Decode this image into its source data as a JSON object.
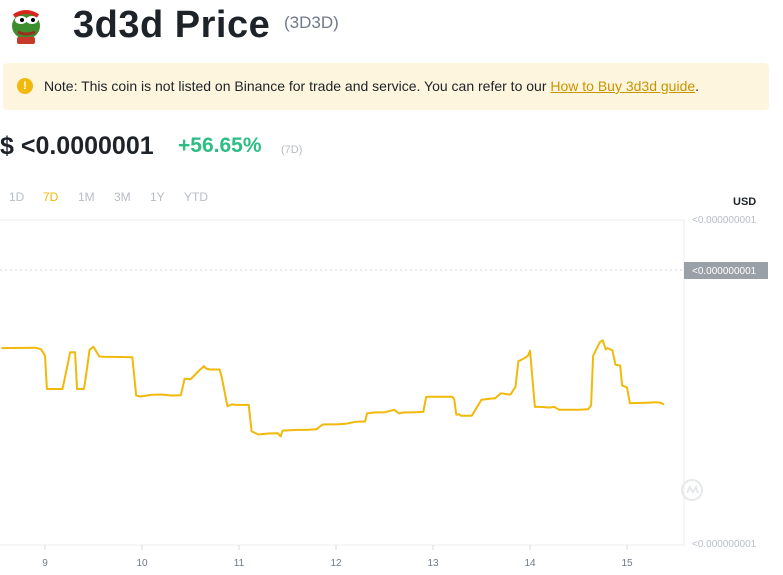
{
  "header": {
    "title": "3d3d Price",
    "symbol": "(3D3D)"
  },
  "note": {
    "text": "Note: This coin is not listed on Binance for trade and service. You can refer to our ",
    "link_text": "How to Buy 3d3d guide",
    "suffix": "."
  },
  "price": {
    "value": "$ <0.0000001",
    "change": "+56.65%",
    "change_period": "(7D)"
  },
  "tabs": [
    {
      "label": "1D",
      "active": false
    },
    {
      "label": "7D",
      "active": true
    },
    {
      "label": "1M",
      "active": false
    },
    {
      "label": "3M",
      "active": false
    },
    {
      "label": "1Y",
      "active": false
    },
    {
      "label": "YTD",
      "active": false
    }
  ],
  "colors": {
    "line": "#f0b90b",
    "positive": "#2ebd85",
    "note_bg": "#fdf5dd"
  },
  "chart_data": {
    "type": "line",
    "currency": "USD",
    "x_ticks": [
      "9",
      "10",
      "11",
      "12",
      "13",
      "14",
      "15"
    ],
    "y_tick_top": "<0.000000001",
    "y_tick_bottom": "<0.000000001",
    "current_price_label": "<0.000000001",
    "series": [
      {
        "x": [
          8.55,
          8.9,
          8.96,
          9.0,
          9.02,
          9.1,
          9.18,
          9.26,
          9.31,
          9.33,
          9.35,
          9.4,
          9.41,
          9.46,
          9.5,
          9.52,
          9.56,
          9.6,
          9.9,
          9.92,
          9.94,
          9.98,
          10.0,
          10.1,
          10.2,
          10.3,
          10.4,
          10.44,
          10.5,
          10.6,
          10.64,
          10.66,
          10.7,
          10.8,
          10.82,
          10.88,
          10.93,
          10.96,
          11.1,
          11.13,
          11.2,
          11.3,
          11.4,
          11.43,
          11.45,
          11.6,
          11.7,
          11.8,
          11.85,
          11.87,
          12.0,
          12.1,
          12.2,
          12.3,
          12.32,
          12.4,
          12.5,
          12.6,
          12.65,
          12.7,
          12.8,
          12.9,
          12.93,
          13.0,
          13.1,
          13.2,
          13.22,
          13.24,
          13.27,
          13.29,
          13.31,
          13.4,
          13.5,
          13.62,
          13.64,
          13.7,
          13.78,
          13.8,
          13.85,
          13.88,
          13.9,
          13.95,
          13.98,
          14.0,
          14.05,
          14.08,
          14.1,
          14.2,
          14.25,
          14.3,
          14.4,
          14.5,
          14.6,
          14.63,
          14.65,
          14.72,
          14.75,
          14.78,
          14.8,
          14.85,
          14.88,
          14.93,
          14.95,
          15.0,
          15.03,
          15.1,
          15.2,
          15.3,
          15.35,
          15.38
        ],
        "y": [
          60.6,
          60.7,
          60.2,
          58.2,
          48.0,
          48.0,
          48.0,
          59.3,
          59.3,
          48.0,
          48.0,
          48.0,
          49.5,
          60.1,
          61.0,
          60.0,
          58.0,
          57.9,
          57.8,
          52.1,
          46.0,
          45.7,
          45.8,
          46.2,
          46.3,
          46.0,
          46.1,
          51.2,
          51.0,
          54.0,
          55.0,
          54.3,
          54.0,
          54.0,
          52.0,
          42.7,
          43.3,
          43.1,
          43.1,
          35.0,
          34.0,
          34.3,
          34.4,
          33.4,
          35.2,
          35.4,
          35.4,
          35.6,
          36.8,
          37.1,
          37.1,
          37.3,
          37.9,
          38.0,
          40.5,
          40.8,
          40.8,
          41.6,
          40.5,
          40.8,
          40.8,
          41.0,
          45.6,
          45.6,
          45.6,
          45.6,
          44.7,
          40.1,
          40.2,
          39.8,
          39.8,
          39.8,
          44.7,
          45.1,
          45.1,
          46.7,
          46.3,
          46.3,
          48.7,
          56.6,
          56.8,
          57.6,
          58.3,
          59.8,
          42.5,
          42.5,
          42.5,
          42.3,
          42.5,
          41.6,
          41.6,
          41.6,
          41.8,
          43.0,
          58.2,
          62.4,
          63.0,
          60.2,
          60.6,
          59.9,
          55.5,
          55.2,
          49.1,
          48.5,
          43.6,
          43.7,
          43.8,
          43.9,
          43.8,
          43.2
        ]
      }
    ]
  }
}
